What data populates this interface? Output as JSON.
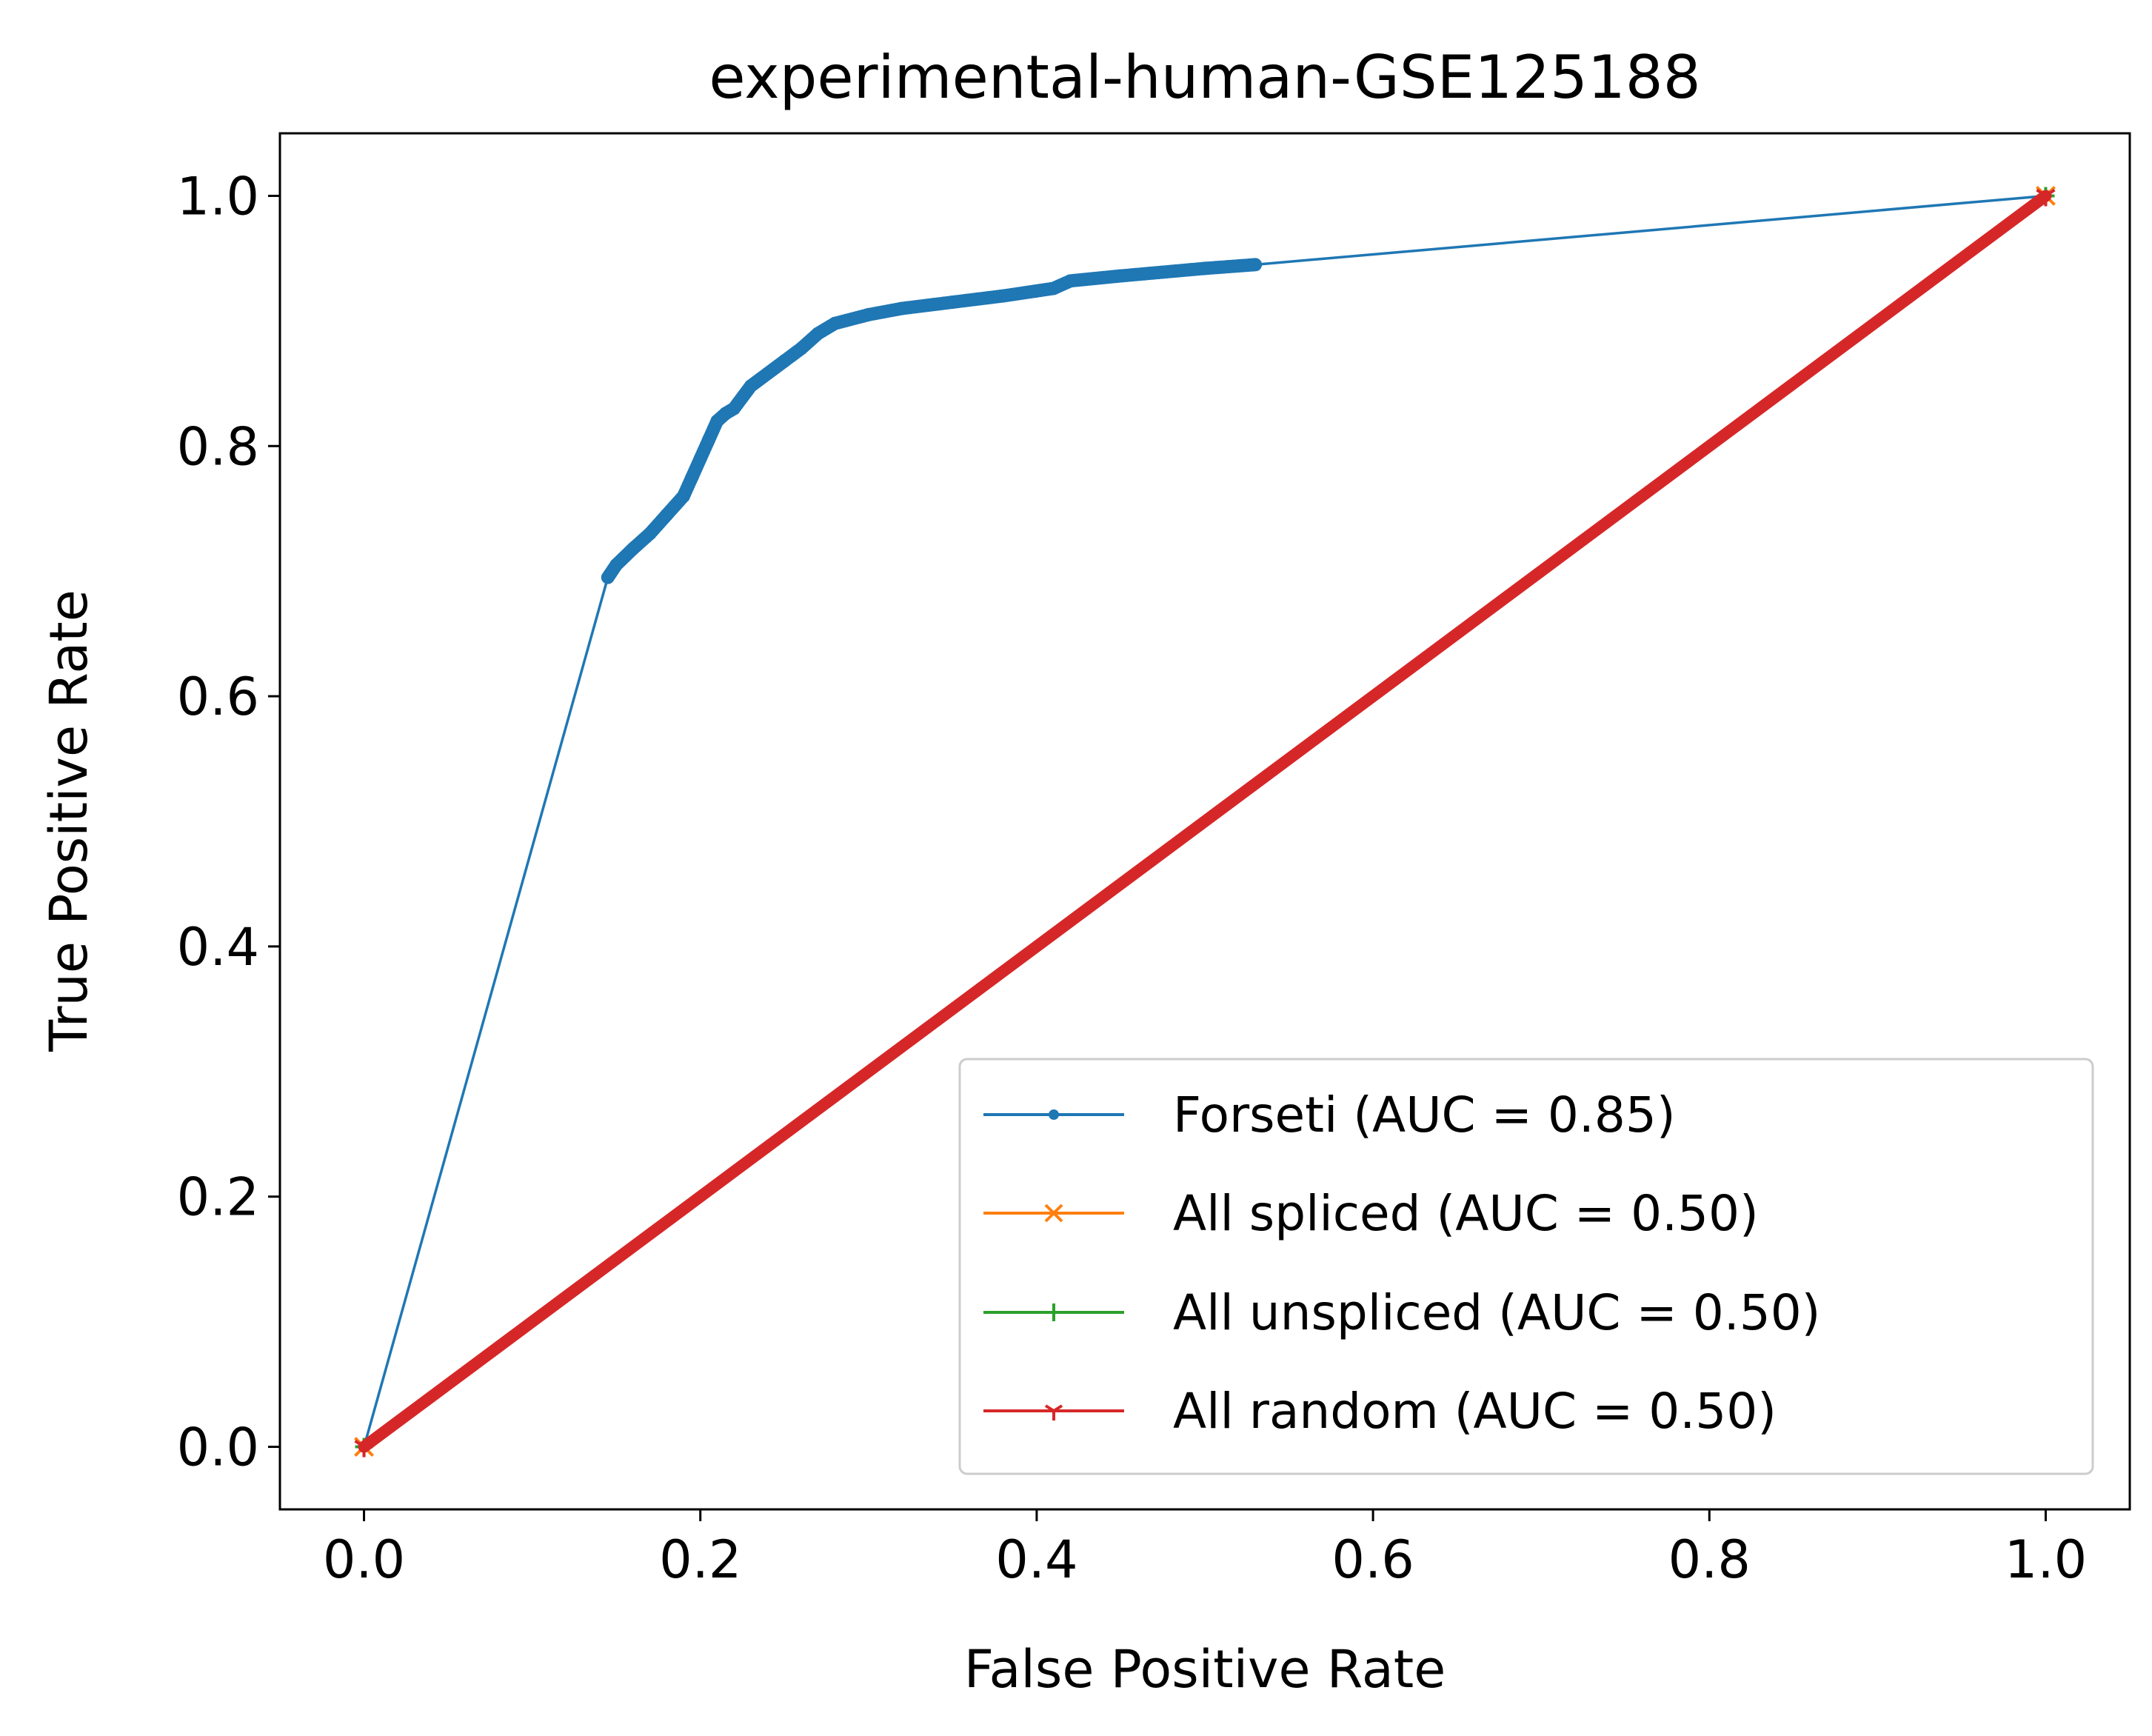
{
  "chart_data": {
    "type": "line",
    "title": "experimental-human-GSE125188",
    "xlabel": "False Positive Rate",
    "ylabel": "True Positive Rate",
    "xlim": [
      -0.05,
      1.05
    ],
    "ylim": [
      -0.05,
      1.05
    ],
    "xticks": [
      "0.0",
      "0.2",
      "0.4",
      "0.6",
      "0.8",
      "1.0"
    ],
    "yticks": [
      "0.0",
      "0.2",
      "0.4",
      "0.6",
      "0.8",
      "1.0"
    ],
    "grid": false,
    "legend_position": "lower-right",
    "series": [
      {
        "name": "Forseti (AUC = 0.85)",
        "color": "#1f77b4",
        "marker": "dot",
        "x": [
          0.0,
          0.145,
          0.15,
          0.16,
          0.17,
          0.18,
          0.19,
          0.195,
          0.2,
          0.205,
          0.21,
          0.215,
          0.22,
          0.23,
          0.24,
          0.25,
          0.26,
          0.27,
          0.28,
          0.3,
          0.32,
          0.35,
          0.38,
          0.4,
          0.41,
          0.42,
          0.45,
          0.5,
          0.53,
          1.0
        ],
        "y": [
          0.0,
          0.695,
          0.705,
          0.718,
          0.73,
          0.745,
          0.76,
          0.775,
          0.79,
          0.805,
          0.82,
          0.826,
          0.83,
          0.848,
          0.858,
          0.868,
          0.878,
          0.89,
          0.898,
          0.905,
          0.91,
          0.915,
          0.92,
          0.924,
          0.926,
          0.932,
          0.936,
          0.942,
          0.945,
          1.0
        ]
      },
      {
        "name": "All spliced (AUC = 0.50)",
        "color": "#ff7f0e",
        "marker": "x",
        "x": [
          0.0,
          1.0
        ],
        "y": [
          0.0,
          1.0
        ]
      },
      {
        "name": "All unspliced (AUC = 0.50)",
        "color": "#2ca02c",
        "marker": "+",
        "x": [
          0.0,
          1.0
        ],
        "y": [
          0.0,
          1.0
        ]
      },
      {
        "name": "All random (AUC = 0.50)",
        "color": "#d62728",
        "marker": "tri",
        "x": [
          0.0,
          1.0
        ],
        "y": [
          0.0,
          1.0
        ]
      }
    ]
  }
}
